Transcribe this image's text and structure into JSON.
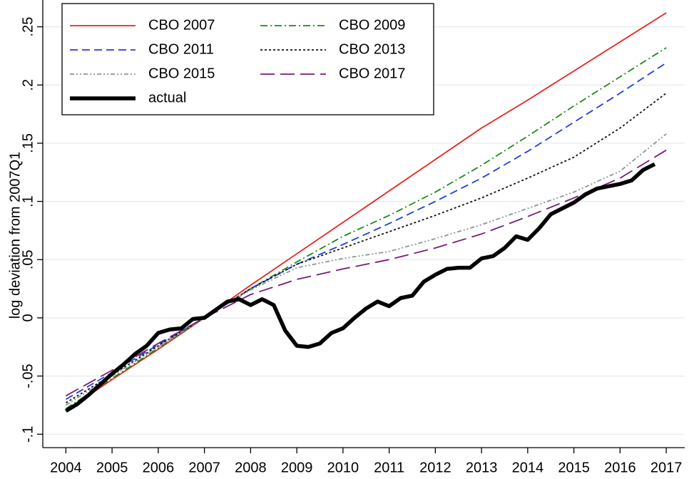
{
  "chart_data": {
    "type": "line",
    "y_label": "log deviation from 2007Q1",
    "xlim": [
      2003.5,
      2017.4
    ],
    "xticks": [
      2004,
      2005,
      2006,
      2007,
      2008,
      2009,
      2010,
      2011,
      2012,
      2013,
      2014,
      2015,
      2016,
      2017
    ],
    "ylim": [
      -0.1115,
      0.273
    ],
    "yticks": [
      {
        "value": -0.1,
        "label": "-.1"
      },
      {
        "value": -0.05,
        "label": "-.05"
      },
      0,
      {
        "value": 0.05,
        "label": ".05"
      },
      {
        "value": 0.1,
        "label": ".1"
      },
      {
        "value": 0.15,
        "label": ".15"
      },
      {
        "value": 0.2,
        "label": ".2"
      },
      {
        "value": 0.25,
        "label": ".25"
      }
    ],
    "grid": true,
    "legend": "top-left",
    "series": [
      {
        "name": "CBO 2007",
        "color": "#e8231f",
        "dash": "solid",
        "x": [
          2004,
          2005,
          2006,
          2007,
          2008,
          2009,
          2010,
          2011,
          2012,
          2013,
          2014,
          2015,
          2016,
          2017
        ],
        "values": [
          -0.08,
          -0.053,
          -0.027,
          0.0,
          0.028,
          0.055,
          0.082,
          0.109,
          0.136,
          0.163,
          0.187,
          0.212,
          0.237,
          0.262
        ]
      },
      {
        "name": "CBO 2009",
        "color": "#1a8a1a",
        "dash": "dashdot",
        "x": [
          2004,
          2005,
          2006,
          2007,
          2008,
          2009,
          2010,
          2011,
          2012,
          2013,
          2014,
          2015,
          2016,
          2017
        ],
        "values": [
          -0.078,
          -0.052,
          -0.026,
          0.0,
          0.025,
          0.048,
          0.07,
          0.088,
          0.108,
          0.131,
          0.156,
          0.182,
          0.207,
          0.232
        ]
      },
      {
        "name": "CBO 2011",
        "color": "#1f3fd8",
        "dash": "dash",
        "x": [
          2004,
          2005,
          2006,
          2007,
          2008,
          2009,
          2010,
          2011,
          2012,
          2013,
          2014,
          2015,
          2016,
          2017
        ],
        "values": [
          -0.07,
          -0.047,
          -0.023,
          0.0,
          0.025,
          0.046,
          0.063,
          0.081,
          0.1,
          0.12,
          0.143,
          0.168,
          0.193,
          0.219
        ]
      },
      {
        "name": "CBO 2013",
        "color": "#111111",
        "dash": "dot",
        "x": [
          2004,
          2005,
          2006,
          2007,
          2008,
          2009,
          2010,
          2011,
          2012,
          2013,
          2014,
          2015,
          2016,
          2017
        ],
        "values": [
          -0.073,
          -0.049,
          -0.024,
          0.0,
          0.025,
          0.046,
          0.06,
          0.074,
          0.088,
          0.103,
          0.12,
          0.138,
          0.163,
          0.193
        ]
      },
      {
        "name": "CBO 2015",
        "color": "#8a9696",
        "dash": "dashdotdot",
        "x": [
          2004,
          2005,
          2006,
          2007,
          2008,
          2009,
          2010,
          2011,
          2012,
          2013,
          2014,
          2015,
          2016,
          2017
        ],
        "values": [
          -0.075,
          -0.05,
          -0.025,
          0.0,
          0.024,
          0.043,
          0.051,
          0.057,
          0.068,
          0.08,
          0.094,
          0.108,
          0.126,
          0.158
        ]
      },
      {
        "name": "CBO 2017",
        "color": "#7a1a7a",
        "dash": "longdash",
        "x": [
          2004,
          2005,
          2006,
          2007,
          2008,
          2009,
          2010,
          2011,
          2012,
          2013,
          2014,
          2015,
          2016,
          2017
        ],
        "values": [
          -0.067,
          -0.045,
          -0.022,
          0.0,
          0.02,
          0.033,
          0.042,
          0.05,
          0.06,
          0.072,
          0.087,
          0.103,
          0.12,
          0.144
        ]
      },
      {
        "name": "actual",
        "color": "#000000",
        "dash": "thick",
        "x": [
          2004,
          2004.25,
          2004.5,
          2004.75,
          2005,
          2005.25,
          2005.5,
          2005.75,
          2006,
          2006.25,
          2006.5,
          2006.75,
          2007,
          2007.25,
          2007.5,
          2007.75,
          2008,
          2008.25,
          2008.5,
          2008.75,
          2009,
          2009.25,
          2009.5,
          2009.75,
          2010,
          2010.25,
          2010.5,
          2010.75,
          2011,
          2011.25,
          2011.5,
          2011.75,
          2012,
          2012.25,
          2012.5,
          2012.75,
          2013,
          2013.25,
          2013.5,
          2013.75,
          2014,
          2014.25,
          2014.5,
          2014.75,
          2015,
          2015.25,
          2015.5,
          2015.75,
          2016,
          2016.25,
          2016.5,
          2016.75
        ],
        "values": [
          -0.08,
          -0.074,
          -0.066,
          -0.057,
          -0.048,
          -0.04,
          -0.031,
          -0.024,
          -0.013,
          -0.01,
          -0.009,
          -0.001,
          0.0,
          0.007,
          0.014,
          0.016,
          0.011,
          0.016,
          0.011,
          -0.011,
          -0.024,
          -0.025,
          -0.022,
          -0.013,
          -0.009,
          0.0,
          0.008,
          0.014,
          0.01,
          0.017,
          0.019,
          0.031,
          0.037,
          0.042,
          0.043,
          0.043,
          0.051,
          0.053,
          0.06,
          0.07,
          0.067,
          0.077,
          0.089,
          0.094,
          0.099,
          0.106,
          0.111,
          0.113,
          0.115,
          0.118,
          0.127,
          0.132
        ]
      }
    ]
  }
}
